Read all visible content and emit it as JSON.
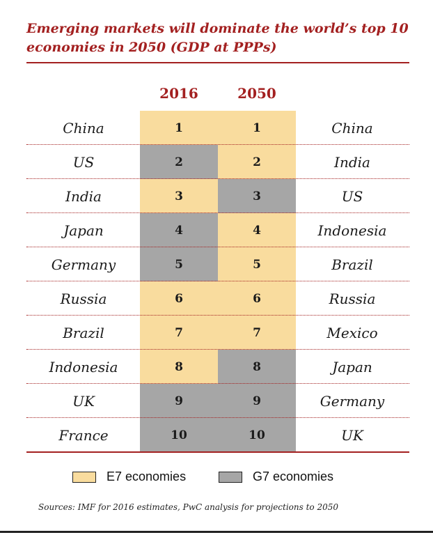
{
  "chart_data": {
    "type": "table",
    "title": "Emerging markets will dominate the world’s top 10 economies in 2050 (GDP at PPPs)",
    "columns": [
      "2016",
      "2050"
    ],
    "ranks": [
      "1",
      "2",
      "3",
      "4",
      "5",
      "6",
      "7",
      "8",
      "9",
      "10"
    ],
    "rows": [
      {
        "country_2016": "China",
        "group_2016": "E7",
        "country_2050": "China",
        "group_2050": "E7"
      },
      {
        "country_2016": "US",
        "group_2016": "G7",
        "country_2050": "India",
        "group_2050": "E7"
      },
      {
        "country_2016": "India",
        "group_2016": "E7",
        "country_2050": "US",
        "group_2050": "G7"
      },
      {
        "country_2016": "Japan",
        "group_2016": "G7",
        "country_2050": "Indonesia",
        "group_2050": "E7"
      },
      {
        "country_2016": "Germany",
        "group_2016": "G7",
        "country_2050": "Brazil",
        "group_2050": "E7"
      },
      {
        "country_2016": "Russia",
        "group_2016": "E7",
        "country_2050": "Russia",
        "group_2050": "E7"
      },
      {
        "country_2016": "Brazil",
        "group_2016": "E7",
        "country_2050": "Mexico",
        "group_2050": "E7"
      },
      {
        "country_2016": "Indonesia",
        "group_2016": "E7",
        "country_2050": "Japan",
        "group_2050": "G7"
      },
      {
        "country_2016": "UK",
        "group_2016": "G7",
        "country_2050": "Germany",
        "group_2050": "G7"
      },
      {
        "country_2016": "France",
        "group_2016": "G7",
        "country_2050": "UK",
        "group_2050": "G7"
      }
    ],
    "legend": [
      {
        "key": "E7",
        "label": "E7 economies",
        "color": "#f9dc9e"
      },
      {
        "key": "G7",
        "label": "G7 economies",
        "color": "#a6a6a6"
      }
    ],
    "source": "Sources: IMF for 2016 estimates, PwC analysis for projections to 2050"
  },
  "colors": {
    "accent": "#a32020",
    "E7": "#f9dc9e",
    "G7": "#a6a6a6"
  }
}
